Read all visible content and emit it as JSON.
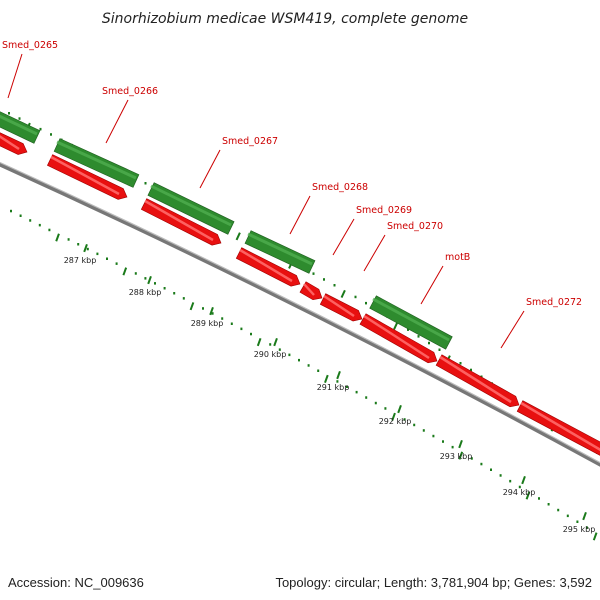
{
  "title": "Sinorhizobium medicae WSM419, complete genome",
  "footer": {
    "accession": "Accession: NC_009636",
    "stats": "Topology: circular; Length: 3,781,904 bp; Genes: 3,592"
  },
  "colors": {
    "forward": "#2e8b2e",
    "reverse": "#e81010",
    "backbone": "#888888",
    "label": "#cc0000",
    "ticks": "#1a7a1a"
  },
  "genes": [
    {
      "name": "Smed_0265",
      "strand": "+"
    },
    {
      "name": "Smed_0266",
      "strand": "+"
    },
    {
      "name": "Smed_0267",
      "strand": "+"
    },
    {
      "name": "Smed_0268",
      "strand": "+"
    },
    {
      "name": "Smed_0269",
      "strand": "-"
    },
    {
      "name": "Smed_0270",
      "strand": "-"
    },
    {
      "name": "motB",
      "strand": "+"
    },
    {
      "name": "Smed_0272",
      "strand": "-"
    }
  ],
  "kbp_labels": [
    "287 kbp",
    "288 kbp",
    "289 kbp",
    "290 kbp",
    "291 kbp",
    "292 kbp",
    "293 kbp",
    "294 kbp",
    "295 kbp"
  ]
}
